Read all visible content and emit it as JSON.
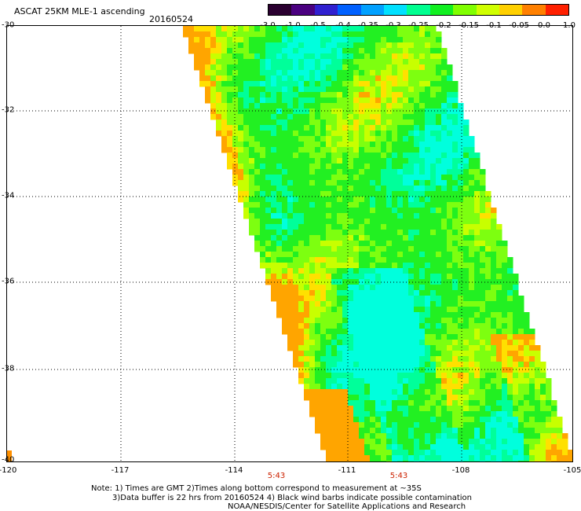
{
  "header": {
    "title": "ASCAT 25KM MLE-1 ascending",
    "date": "20160524"
  },
  "colorbar": {
    "labels": [
      "-3.0",
      "-1.0",
      "-0.5",
      "-0.4",
      "-0.35",
      "-0.3",
      "-0.25",
      "-0.2",
      "-0.15",
      "-0.1",
      "-0.05",
      "0.0",
      "1.0"
    ],
    "colors": [
      "#2a0030",
      "#4a0080",
      "#3020d0",
      "#0060ff",
      "#00a0ff",
      "#00e0ff",
      "#00ff90",
      "#10f020",
      "#80ff00",
      "#d0ff00",
      "#ffd000",
      "#ff8000",
      "#ff2000"
    ]
  },
  "map": {
    "lat_labels": [
      "-30",
      "-32",
      "-34",
      "-36",
      "-38",
      "-40"
    ],
    "lon_labels": [
      "-120",
      "-117",
      "-114",
      "-111",
      "-108",
      "-105"
    ],
    "times": [
      "5:43",
      "5:43"
    ]
  },
  "footer": {
    "line1": "Note: 1) Times are GMT 2)Times along bottom correspond to measurement at ~35S",
    "line2": "3)Data buffer is 22 hrs from 20160524 4) Black wind barbs indicate possible contamination",
    "line3": "NOAA/NESDIS/Center for Satellite Applications and Research"
  }
}
